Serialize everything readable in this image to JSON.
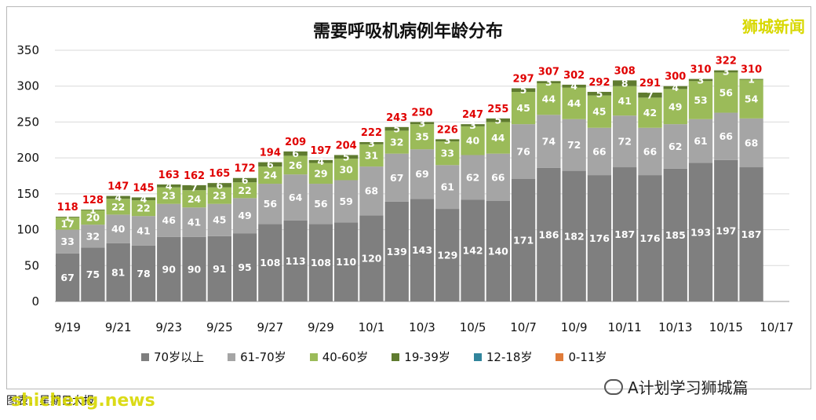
{
  "brand": "狮城新闻",
  "source_note": "图表：星期日大报",
  "watermark": "shicheng.news",
  "wechat_label": "A计划学习狮城篇",
  "colors": {
    "70+": "#7f7f7f",
    "61-70": "#a5a5a5",
    "40-60": "#9bbb59",
    "19-39": "#5f7b2f",
    "12-18": "#31859c",
    "0-11": "#e07b39",
    "total_label": "#e00000"
  },
  "chart_data": {
    "type": "bar",
    "stacked": true,
    "title": "需要呼吸机病例年龄分布",
    "xlabel": "",
    "ylabel": "",
    "ylim": [
      0,
      350
    ],
    "yticks": [
      0,
      50,
      100,
      150,
      200,
      250,
      300,
      350
    ],
    "grid": true,
    "legend_position": "bottom",
    "categories": [
      "9/19",
      "9/20",
      "9/21",
      "9/22",
      "9/23",
      "9/24",
      "9/25",
      "9/26",
      "9/27",
      "9/28",
      "9/29",
      "9/30",
      "10/1",
      "10/2",
      "10/3",
      "10/4",
      "10/5",
      "10/6",
      "10/7",
      "10/8",
      "10/9",
      "10/10",
      "10/11",
      "10/12",
      "10/13",
      "10/14",
      "10/15",
      "10/16",
      "10/17"
    ],
    "x_tick_labels": [
      "9/19",
      "9/21",
      "9/23",
      "9/25",
      "9/27",
      "9/29",
      "10/1",
      "10/3",
      "10/5",
      "10/7",
      "10/9",
      "10/11",
      "10/13",
      "10/15",
      "10/17"
    ],
    "series": [
      {
        "name": "70岁以上",
        "values": [
          67,
          75,
          81,
          78,
          90,
          90,
          91,
          95,
          108,
          113,
          108,
          110,
          120,
          139,
          143,
          129,
          142,
          140,
          171,
          186,
          182,
          176,
          187,
          176,
          185,
          193,
          197,
          187,
          null
        ]
      },
      {
        "name": "61-70岁",
        "values": [
          33,
          32,
          40,
          41,
          46,
          41,
          45,
          49,
          56,
          64,
          56,
          59,
          68,
          67,
          69,
          61,
          62,
          66,
          76,
          74,
          72,
          66,
          72,
          66,
          62,
          61,
          66,
          68,
          null
        ]
      },
      {
        "name": "40-60岁",
        "values": [
          17,
          20,
          22,
          22,
          23,
          24,
          23,
          22,
          24,
          26,
          29,
          30,
          31,
          32,
          35,
          33,
          40,
          44,
          45,
          44,
          44,
          45,
          41,
          42,
          49,
          53,
          56,
          54,
          null
        ]
      },
      {
        "name": "19-39岁",
        "values": [
          1,
          1,
          4,
          4,
          4,
          7,
          6,
          6,
          6,
          6,
          4,
          5,
          3,
          5,
          3,
          3,
          3,
          5,
          5,
          3,
          4,
          5,
          8,
          7,
          4,
          3,
          3,
          1,
          null
        ]
      },
      {
        "name": "12-18岁",
        "values": [
          0,
          0,
          0,
          0,
          0,
          0,
          0,
          0,
          0,
          0,
          0,
          0,
          0,
          0,
          0,
          0,
          0,
          0,
          0,
          0,
          0,
          0,
          0,
          0,
          0,
          0,
          0,
          0,
          null
        ]
      },
      {
        "name": "0-11岁",
        "values": [
          0,
          0,
          0,
          0,
          0,
          0,
          0,
          0,
          0,
          0,
          0,
          0,
          0,
          0,
          0,
          0,
          0,
          0,
          0,
          0,
          0,
          0,
          0,
          0,
          0,
          0,
          0,
          0,
          null
        ]
      }
    ],
    "totals": [
      118,
      128,
      147,
      145,
      163,
      162,
      165,
      172,
      194,
      209,
      197,
      204,
      222,
      243,
      250,
      226,
      247,
      255,
      297,
      307,
      302,
      292,
      308,
      291,
      300,
      310,
      322,
      310,
      null
    ]
  }
}
